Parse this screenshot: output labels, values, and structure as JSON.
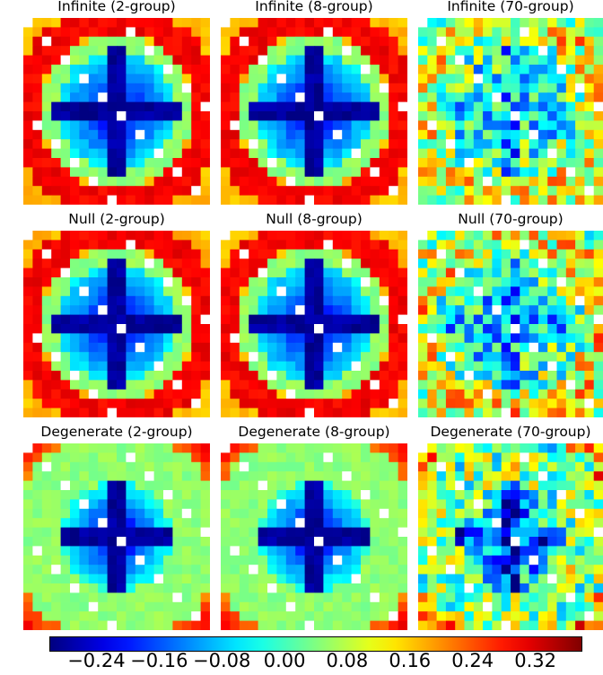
{
  "chart_data": [
    {
      "type": "heatmap",
      "title": "Infinite (2-group)",
      "pattern": "sym",
      "seed": 11,
      "grid": [
        20,
        20
      ]
    },
    {
      "type": "heatmap",
      "title": "Infinite (8-group)",
      "pattern": "sym",
      "seed": 23,
      "grid": [
        20,
        20
      ]
    },
    {
      "type": "heatmap",
      "title": "Infinite (70-group)",
      "pattern": "noisy",
      "seed": 37,
      "grid": [
        20,
        20
      ]
    },
    {
      "type": "heatmap",
      "title": "Null (2-group)",
      "pattern": "sym",
      "seed": 41,
      "grid": [
        20,
        20
      ]
    },
    {
      "type": "heatmap",
      "title": "Null (8-group)",
      "pattern": "sym",
      "seed": 53,
      "grid": [
        20,
        20
      ]
    },
    {
      "type": "heatmap",
      "title": "Null (70-group)",
      "pattern": "noisy",
      "seed": 67,
      "grid": [
        20,
        20
      ]
    },
    {
      "type": "heatmap",
      "title": "Degenerate (2-group)",
      "pattern": "degen",
      "seed": 71,
      "grid": [
        20,
        20
      ]
    },
    {
      "type": "heatmap",
      "title": "Degenerate (8-group)",
      "pattern": "degen",
      "seed": 83,
      "grid": [
        20,
        20
      ]
    },
    {
      "type": "heatmap",
      "title": "Degenerate (70-group)",
      "pattern": "degen-noisy",
      "seed": 97,
      "grid": [
        20,
        20
      ]
    }
  ],
  "colorbar": {
    "colormap": "jet",
    "range": [
      -0.3,
      0.38
    ],
    "ticks": [
      "−0.24",
      "−0.16",
      "−0.08",
      "0.00",
      "0.08",
      "0.16",
      "0.24",
      "0.32"
    ],
    "tick_values": [
      -0.24,
      -0.16,
      -0.08,
      0.0,
      0.08,
      0.16,
      0.24,
      0.32
    ]
  }
}
